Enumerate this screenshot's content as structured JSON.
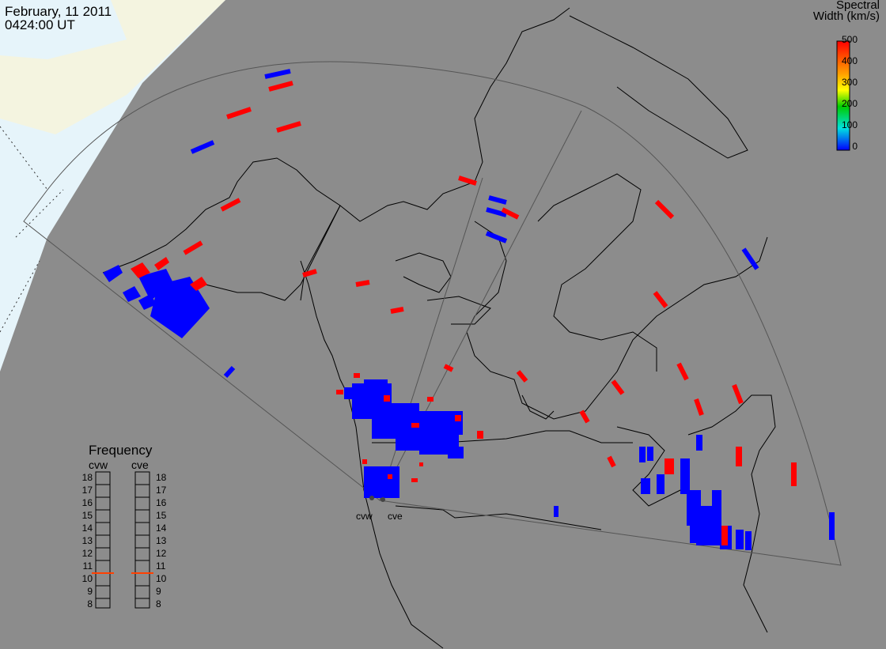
{
  "title": {
    "date": "February, 11 2011",
    "time": "0424:00 UT"
  },
  "colorbar": {
    "title_line1": "Spectral",
    "title_line2": "Width (km/s)",
    "ticks": [
      "500",
      "400",
      "300",
      "200",
      "100",
      "0"
    ],
    "colors": [
      "#ff0000",
      "#ffff00",
      "#00cc00",
      "#00e0e0",
      "#0000ff"
    ]
  },
  "frequency_panel": {
    "title": "Frequency",
    "radars": [
      "cvw",
      "cve"
    ],
    "levels": [
      "18",
      "17",
      "16",
      "15",
      "14",
      "13",
      "12",
      "11",
      "10",
      "9",
      "8"
    ],
    "selected_cvw": 11,
    "selected_cve": 11,
    "marker_color": "#ff4000"
  },
  "radar_sites": {
    "labels": [
      "cvw",
      "cve"
    ]
  },
  "colors": {
    "background": "#8c8c8c",
    "night_region": "#e6f4fa",
    "twilight_region": "#f4f4e0",
    "low_width": "#0000ff",
    "high_width": "#ff0000"
  }
}
